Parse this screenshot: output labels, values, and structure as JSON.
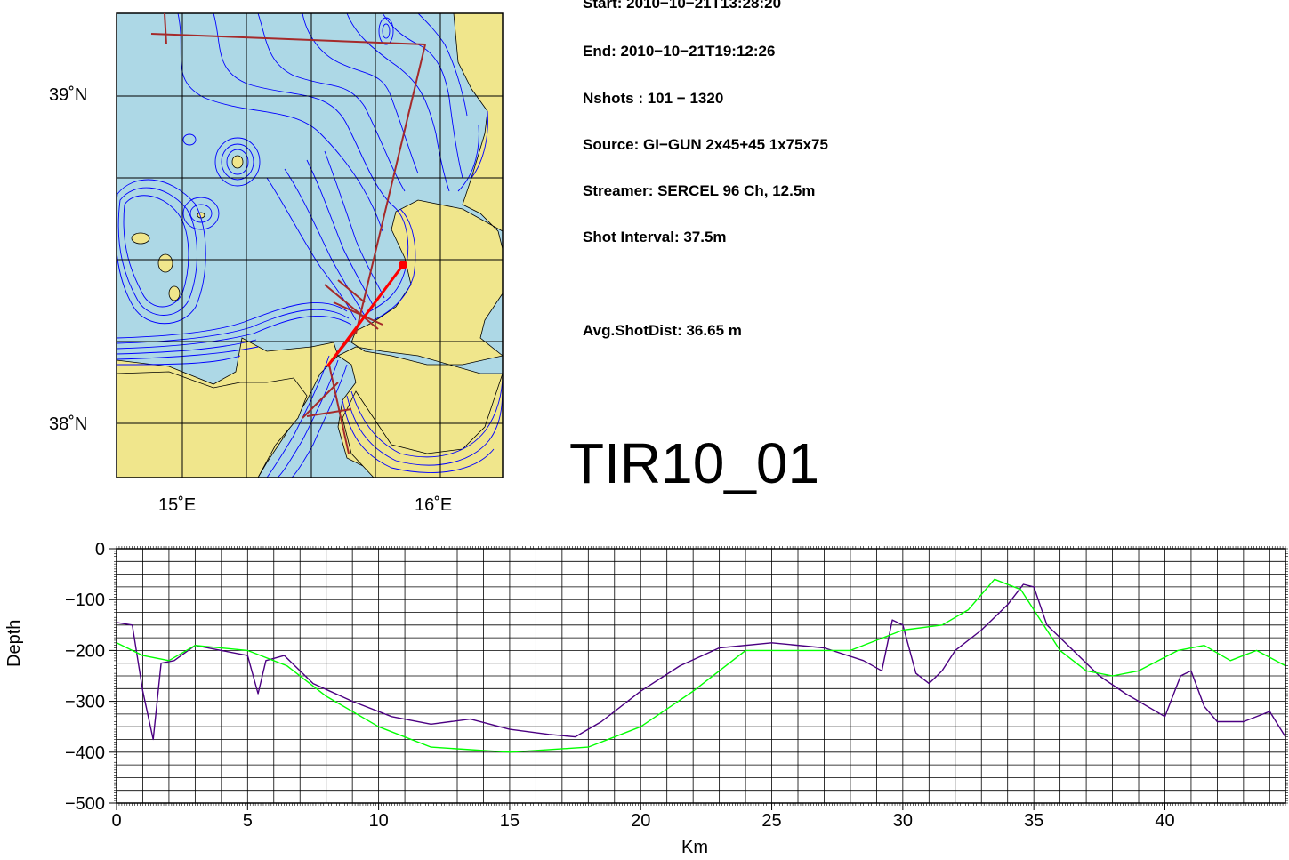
{
  "map": {
    "lat_labels": [
      "39˚N",
      "38˚N"
    ],
    "lon_labels": [
      "15˚E",
      "16˚E"
    ],
    "colors": {
      "sea": "#add8e6",
      "land": "#f0e68c",
      "contour": "#0000ff",
      "track": "#a52a2a",
      "current_line": "#ff0000"
    }
  },
  "info": {
    "start": "Start:  2010−10−21T13:28:20",
    "end": "End:   2010−10−21T19:12:26",
    "nshots": "Nshots : 101 − 1320",
    "source": "Source: GI−GUN 2x45+45 1x75x75",
    "streamer": "Streamer: SERCEL 96 Ch, 12.5m",
    "shot_interval": "Shot Interval: 37.5m",
    "avg_shot_dist": "Avg.ShotDist:   36.65 m"
  },
  "line_name": "TIR10_01",
  "chart_data": {
    "type": "line",
    "xlabel": "Km",
    "ylabel": "Depth",
    "xlim": [
      0,
      44.6
    ],
    "ylim": [
      -500,
      0
    ],
    "x_ticks": [
      0,
      5,
      10,
      15,
      20,
      25,
      30,
      35,
      40
    ],
    "y_ticks": [
      0,
      -100,
      -200,
      -300,
      -400,
      -500
    ],
    "x_tick_labels": [
      "0",
      "5",
      "10",
      "15",
      "20",
      "25",
      "30",
      "35",
      "40"
    ],
    "y_tick_labels": [
      "0",
      "−100",
      "−200",
      "−300",
      "−400",
      "−500"
    ],
    "grid": true,
    "series": [
      {
        "color": "#4b0082",
        "x": [
          0,
          0.6,
          1.0,
          1.4,
          1.7,
          2.2,
          3.0,
          4.0,
          5.0,
          5.4,
          5.7,
          6.4,
          7.5,
          9.0,
          10.5,
          12.0,
          13.5,
          15.0,
          16.5,
          17.5,
          18.5,
          20.0,
          21.5,
          23.0,
          25.0,
          27.0,
          28.5,
          29.2,
          29.6,
          30.0,
          30.5,
          31.0,
          31.5,
          32.0,
          33.0,
          34.0,
          34.6,
          35.0,
          35.5,
          36.5,
          37.5,
          38.5,
          40.0,
          40.6,
          41.0,
          41.5,
          42.0,
          43.0,
          44.0,
          44.6
        ],
        "y": [
          -145,
          -150,
          -280,
          -375,
          -225,
          -220,
          -190,
          -200,
          -210,
          -285,
          -220,
          -210,
          -265,
          -300,
          -330,
          -345,
          -335,
          -355,
          -365,
          -370,
          -340,
          -280,
          -230,
          -195,
          -185,
          -195,
          -220,
          -240,
          -140,
          -150,
          -245,
          -265,
          -240,
          -200,
          -160,
          -110,
          -70,
          -75,
          -150,
          -200,
          -250,
          -285,
          -330,
          -250,
          -240,
          -310,
          -340,
          -340,
          -320,
          -370
        ]
      },
      {
        "color": "#00ff00",
        "x": [
          0,
          1.0,
          2.0,
          3.0,
          5.0,
          6.5,
          8.0,
          10.0,
          12.0,
          15.0,
          18.0,
          20.0,
          22.0,
          24.0,
          26.0,
          28.0,
          30.0,
          31.5,
          32.5,
          33.5,
          34.5,
          36.0,
          37.0,
          38.0,
          39.0,
          40.5,
          41.5,
          42.5,
          43.5,
          44.6
        ],
        "y": [
          -185,
          -210,
          -220,
          -190,
          -200,
          -230,
          -290,
          -350,
          -390,
          -400,
          -390,
          -350,
          -280,
          -200,
          -200,
          -200,
          -160,
          -150,
          -120,
          -60,
          -80,
          -200,
          -240,
          -250,
          -240,
          -200,
          -190,
          -220,
          -200,
          -230
        ]
      }
    ]
  }
}
